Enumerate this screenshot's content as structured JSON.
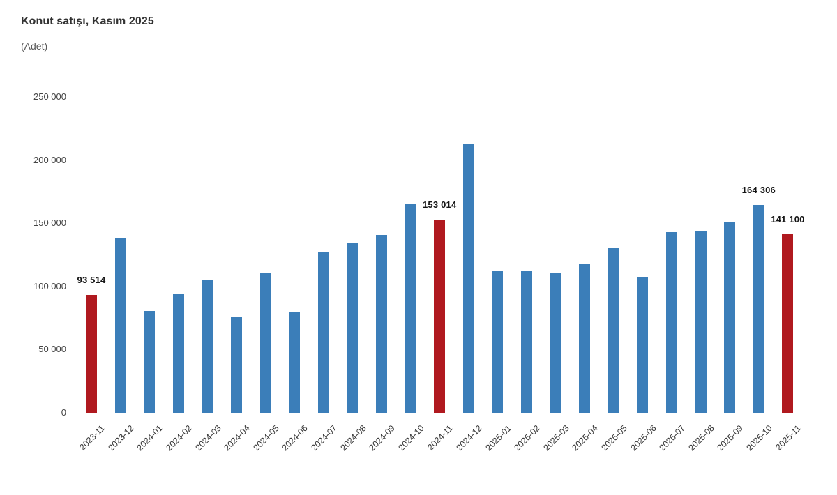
{
  "header": {
    "note": "Monthly house sales chart, Turkey"
  },
  "chart_data": {
    "type": "bar",
    "title": "Konut satışı, Kasım 2025",
    "subtitle": "(Adet)",
    "xlabel": "",
    "ylabel": "Adet",
    "ylim": [
      0,
      250000
    ],
    "grid": false,
    "legend": false,
    "categories": [
      "2023-11",
      "2023-12",
      "2024-01",
      "2024-02",
      "2024-03",
      "2024-04",
      "2024-05",
      "2024-06",
      "2024-07",
      "2024-08",
      "2024-09",
      "2024-10",
      "2024-11",
      "2024-12",
      "2025-01",
      "2025-02",
      "2025-03",
      "2025-04",
      "2025-05",
      "2025-06",
      "2025-07",
      "2025-08",
      "2025-09",
      "2025-10",
      "2025-11"
    ],
    "values": [
      93514,
      138577,
      80308,
      93902,
      105476,
      75569,
      110588,
      79313,
      127088,
      134155,
      140919,
      165138,
      153014,
      212637,
      112173,
      112818,
      110795,
      118359,
      130025,
      107723,
      142858,
      143319,
      150881,
      164306,
      141100
    ],
    "value_labels": {
      "0": "93 514",
      "12": "153 014",
      "23": "164 306",
      "24": "141 100"
    },
    "highlighted_indices": [
      0,
      12,
      24
    ],
    "y_ticks": [
      {
        "value": 0,
        "label": "0"
      },
      {
        "value": 50000,
        "label": "50 000"
      },
      {
        "value": 100000,
        "label": "100 000"
      },
      {
        "value": 150000,
        "label": "150 000"
      },
      {
        "value": 200000,
        "label": "200 000"
      },
      {
        "value": 250000,
        "label": "250 000"
      }
    ],
    "colors": {
      "bar": "#3b7eb9",
      "highlight": "#b0191f",
      "axis": "#d9d9d9",
      "value_label": "#141414"
    }
  }
}
